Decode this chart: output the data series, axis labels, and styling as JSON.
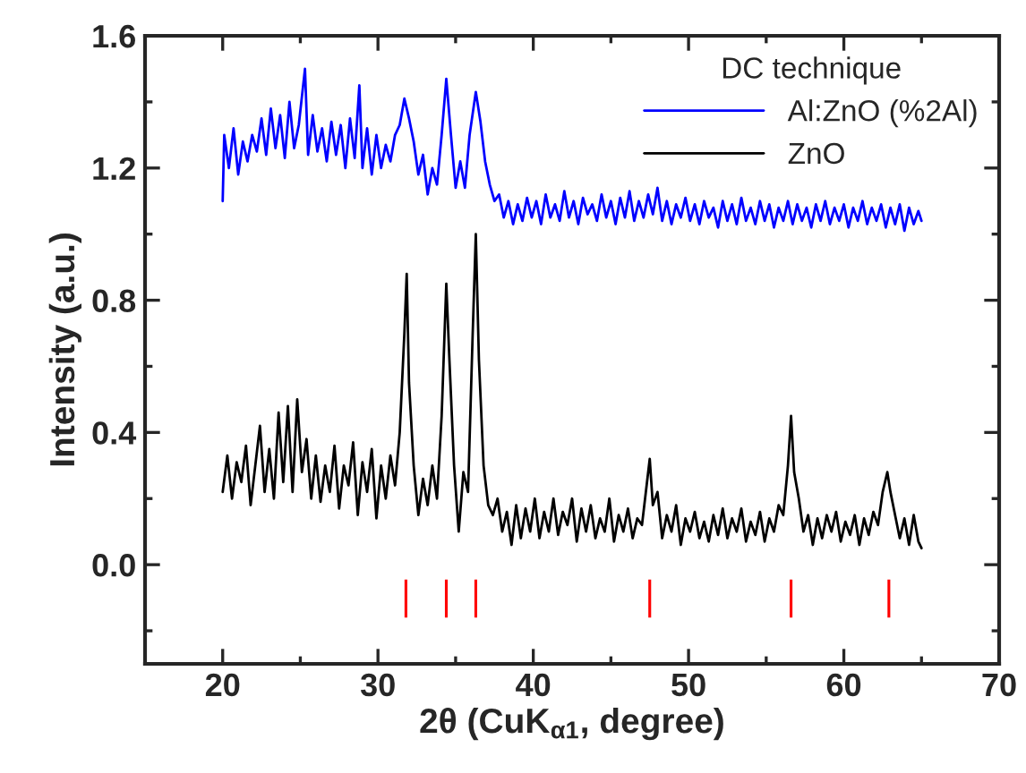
{
  "chart_data": {
    "type": "line",
    "xlabel": "2θ (CuK$_{α1}$, degree)",
    "ylabel": "Intensity (a.u.)",
    "legend_title": "DC technique",
    "legend": "top right",
    "grid": false,
    "xlim": [
      15,
      70
    ],
    "xticks": [
      20,
      30,
      40,
      50,
      60,
      70
    ],
    "ylim": [
      -0.3,
      1.6
    ],
    "yticks": [
      {
        "value": 0,
        "label": "0.0"
      },
      0.4,
      0.8,
      1.2,
      1.6
    ],
    "series": [
      {
        "type": "bar",
        "color": "#ff0000",
        "x": [
          31.8,
          34.4,
          36.3,
          47.5,
          56.6,
          62.9
        ],
        "base": [
          -0.16,
          -0.16,
          -0.16,
          -0.16,
          -0.16,
          -0.16
        ],
        "values": [
          0.115,
          0.115,
          0.115,
          0.115,
          0.115,
          0.115
        ]
      },
      {
        "name": "Al:ZnO (%2Al)",
        "color": "#0000ff",
        "x": [
          20.0,
          20.1,
          20.4,
          20.7,
          21.0,
          21.3,
          21.6,
          21.9,
          22.2,
          22.5,
          22.8,
          23.1,
          23.4,
          23.7,
          24.0,
          24.3,
          24.6,
          24.9,
          25.3,
          25.5,
          25.8,
          26.1,
          26.4,
          26.7,
          27.0,
          27.3,
          27.6,
          27.9,
          28.2,
          28.5,
          28.8,
          29.0,
          29.3,
          29.6,
          29.9,
          30.2,
          30.5,
          30.8,
          31.1,
          31.4,
          31.7,
          32.0,
          32.3,
          32.6,
          32.9,
          33.2,
          33.5,
          33.8,
          34.1,
          34.4,
          34.7,
          35.0,
          35.3,
          35.6,
          35.9,
          36.3,
          36.6,
          36.9,
          37.2,
          37.5,
          37.8,
          38.1,
          38.4,
          38.7,
          39.0,
          39.3,
          39.6,
          39.9,
          40.2,
          40.5,
          40.8,
          41.1,
          41.4,
          41.7,
          42.0,
          42.3,
          42.6,
          42.9,
          43.2,
          43.5,
          43.8,
          44.1,
          44.4,
          44.7,
          45.0,
          45.3,
          45.6,
          45.9,
          46.2,
          46.5,
          46.8,
          47.1,
          47.4,
          47.7,
          48.0,
          48.3,
          48.6,
          48.9,
          49.2,
          49.5,
          49.8,
          50.1,
          50.4,
          50.7,
          51.0,
          51.3,
          51.6,
          51.9,
          52.2,
          52.5,
          52.8,
          53.1,
          53.4,
          53.7,
          54.0,
          54.3,
          54.6,
          54.9,
          55.2,
          55.5,
          55.8,
          56.1,
          56.4,
          56.7,
          57.0,
          57.3,
          57.6,
          57.9,
          58.2,
          58.5,
          58.8,
          59.1,
          59.4,
          59.7,
          60.0,
          60.3,
          60.6,
          60.9,
          61.2,
          61.5,
          61.8,
          62.1,
          62.4,
          62.7,
          63.0,
          63.3,
          63.6,
          63.9,
          64.2,
          64.5,
          64.8,
          65.0
        ],
        "values": [
          1.1,
          1.3,
          1.2,
          1.32,
          1.18,
          1.28,
          1.22,
          1.3,
          1.25,
          1.35,
          1.24,
          1.38,
          1.26,
          1.36,
          1.23,
          1.4,
          1.26,
          1.33,
          1.5,
          1.24,
          1.36,
          1.25,
          1.32,
          1.22,
          1.34,
          1.24,
          1.33,
          1.2,
          1.35,
          1.23,
          1.45,
          1.2,
          1.32,
          1.18,
          1.3,
          1.2,
          1.27,
          1.22,
          1.3,
          1.33,
          1.41,
          1.35,
          1.28,
          1.18,
          1.24,
          1.12,
          1.2,
          1.15,
          1.3,
          1.47,
          1.3,
          1.14,
          1.22,
          1.14,
          1.3,
          1.43,
          1.34,
          1.22,
          1.15,
          1.1,
          1.12,
          1.05,
          1.1,
          1.03,
          1.09,
          1.04,
          1.11,
          1.05,
          1.1,
          1.03,
          1.12,
          1.05,
          1.09,
          1.04,
          1.13,
          1.05,
          1.1,
          1.03,
          1.11,
          1.06,
          1.09,
          1.04,
          1.12,
          1.05,
          1.1,
          1.03,
          1.11,
          1.05,
          1.13,
          1.04,
          1.1,
          1.05,
          1.12,
          1.06,
          1.14,
          1.04,
          1.1,
          1.03,
          1.09,
          1.05,
          1.11,
          1.04,
          1.09,
          1.03,
          1.1,
          1.05,
          1.08,
          1.02,
          1.1,
          1.04,
          1.09,
          1.03,
          1.11,
          1.04,
          1.08,
          1.03,
          1.1,
          1.04,
          1.09,
          1.02,
          1.08,
          1.04,
          1.1,
          1.03,
          1.09,
          1.04,
          1.08,
          1.02,
          1.09,
          1.04,
          1.1,
          1.03,
          1.08,
          1.04,
          1.09,
          1.02,
          1.08,
          1.04,
          1.1,
          1.03,
          1.08,
          1.04,
          1.09,
          1.02,
          1.08,
          1.03,
          1.09,
          1.01,
          1.08,
          1.03,
          1.07,
          1.04
        ]
      },
      {
        "name": "ZnO",
        "color": "#000000",
        "x": [
          20.0,
          20.3,
          20.6,
          20.9,
          21.2,
          21.5,
          21.8,
          22.1,
          22.4,
          22.7,
          23.0,
          23.3,
          23.6,
          23.9,
          24.2,
          24.5,
          24.8,
          25.1,
          25.4,
          25.7,
          26.0,
          26.3,
          26.6,
          26.9,
          27.2,
          27.5,
          27.8,
          28.1,
          28.4,
          28.7,
          29.0,
          29.3,
          29.6,
          29.9,
          30.2,
          30.5,
          30.8,
          31.1,
          31.4,
          31.7,
          31.85,
          32.0,
          32.3,
          32.6,
          32.9,
          33.2,
          33.5,
          33.8,
          34.1,
          34.4,
          34.6,
          34.9,
          35.2,
          35.5,
          35.8,
          36.1,
          36.3,
          36.5,
          36.8,
          37.1,
          37.4,
          37.7,
          38.0,
          38.3,
          38.6,
          38.9,
          39.2,
          39.5,
          39.8,
          40.1,
          40.4,
          40.7,
          41.0,
          41.3,
          41.6,
          41.9,
          42.2,
          42.5,
          42.8,
          43.1,
          43.4,
          43.7,
          44.0,
          44.3,
          44.6,
          44.9,
          45.2,
          45.5,
          45.8,
          46.1,
          46.4,
          46.7,
          47.0,
          47.3,
          47.5,
          47.7,
          48.0,
          48.3,
          48.6,
          48.9,
          49.2,
          49.5,
          49.8,
          50.1,
          50.4,
          50.7,
          51.0,
          51.3,
          51.6,
          51.9,
          52.2,
          52.5,
          52.8,
          53.1,
          53.4,
          53.7,
          54.0,
          54.3,
          54.6,
          54.9,
          55.2,
          55.5,
          55.8,
          56.1,
          56.4,
          56.6,
          56.8,
          57.1,
          57.4,
          57.7,
          58.0,
          58.3,
          58.6,
          58.9,
          59.2,
          59.5,
          59.8,
          60.1,
          60.4,
          60.7,
          61.0,
          61.3,
          61.6,
          61.9,
          62.2,
          62.5,
          62.8,
          63.0,
          63.3,
          63.6,
          63.9,
          64.2,
          64.5,
          64.8,
          65.0
        ],
        "values": [
          0.22,
          0.33,
          0.2,
          0.31,
          0.25,
          0.36,
          0.18,
          0.3,
          0.42,
          0.22,
          0.35,
          0.2,
          0.46,
          0.25,
          0.48,
          0.22,
          0.5,
          0.28,
          0.38,
          0.2,
          0.33,
          0.19,
          0.3,
          0.22,
          0.36,
          0.17,
          0.3,
          0.24,
          0.37,
          0.15,
          0.31,
          0.22,
          0.35,
          0.14,
          0.3,
          0.2,
          0.33,
          0.24,
          0.4,
          0.7,
          0.88,
          0.55,
          0.3,
          0.15,
          0.26,
          0.18,
          0.3,
          0.2,
          0.45,
          0.85,
          0.62,
          0.3,
          0.1,
          0.28,
          0.22,
          0.7,
          1.0,
          0.62,
          0.3,
          0.18,
          0.15,
          0.2,
          0.1,
          0.16,
          0.06,
          0.18,
          0.08,
          0.17,
          0.1,
          0.2,
          0.08,
          0.16,
          0.1,
          0.2,
          0.09,
          0.16,
          0.12,
          0.2,
          0.07,
          0.17,
          0.1,
          0.18,
          0.08,
          0.14,
          0.1,
          0.2,
          0.07,
          0.15,
          0.1,
          0.17,
          0.08,
          0.14,
          0.12,
          0.24,
          0.32,
          0.18,
          0.22,
          0.08,
          0.15,
          0.1,
          0.18,
          0.06,
          0.14,
          0.1,
          0.16,
          0.08,
          0.13,
          0.07,
          0.15,
          0.09,
          0.17,
          0.08,
          0.14,
          0.1,
          0.17,
          0.07,
          0.13,
          0.09,
          0.16,
          0.07,
          0.14,
          0.1,
          0.18,
          0.15,
          0.3,
          0.45,
          0.28,
          0.2,
          0.1,
          0.15,
          0.06,
          0.14,
          0.08,
          0.15,
          0.1,
          0.16,
          0.07,
          0.13,
          0.09,
          0.15,
          0.06,
          0.14,
          0.09,
          0.16,
          0.12,
          0.22,
          0.28,
          0.22,
          0.15,
          0.08,
          0.14,
          0.06,
          0.15,
          0.07,
          0.05
        ]
      }
    ]
  }
}
